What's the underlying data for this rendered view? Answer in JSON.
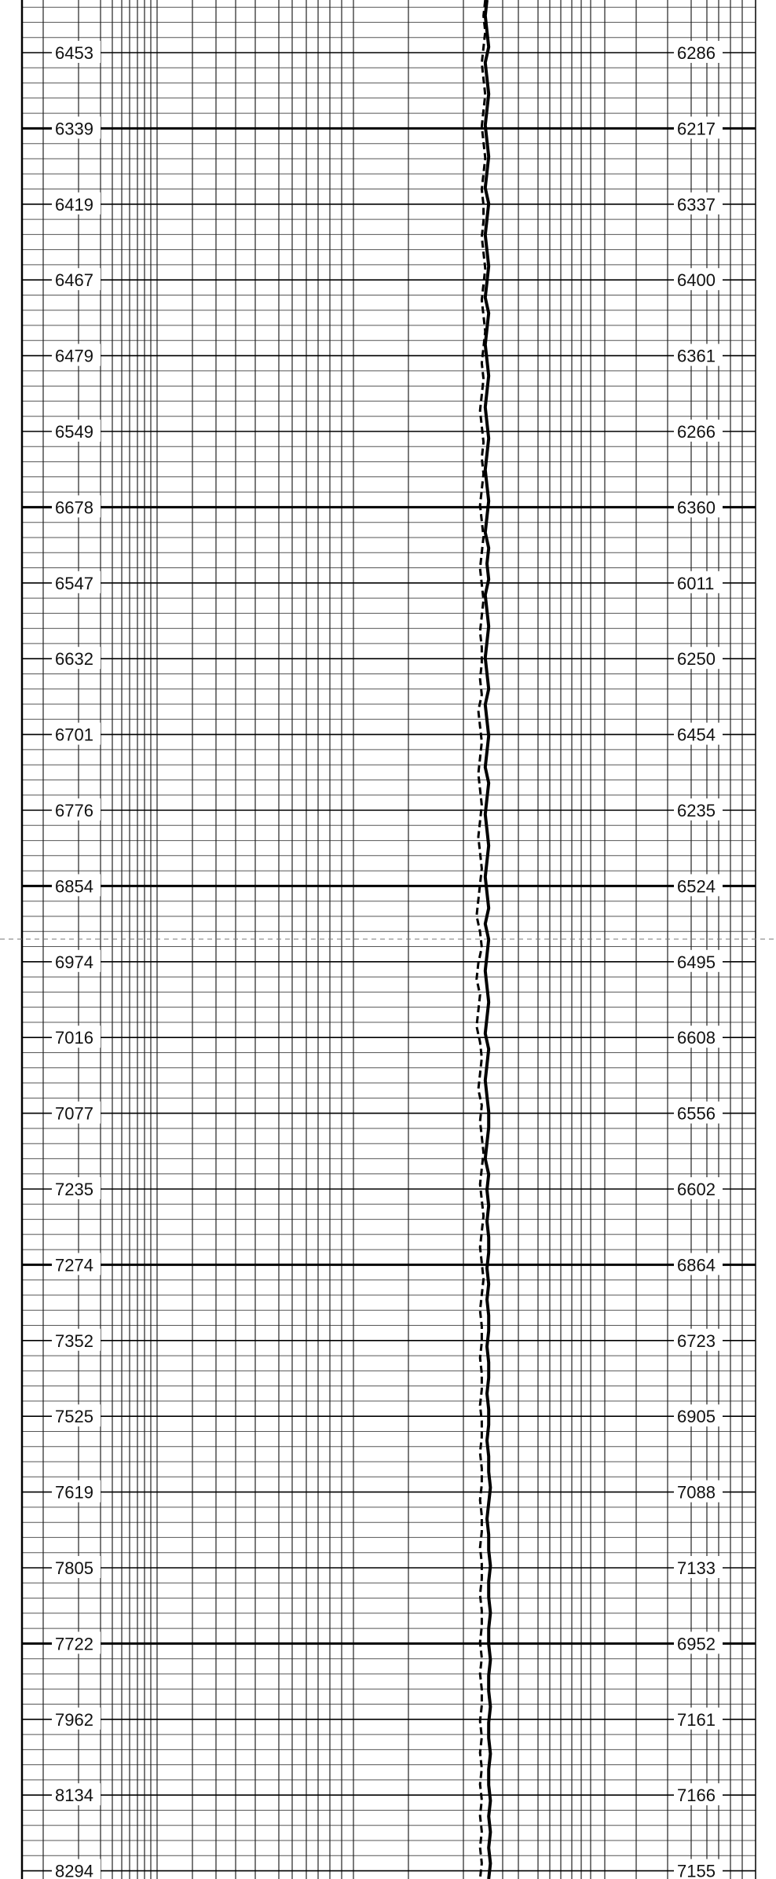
{
  "chart_data": {
    "type": "line",
    "title": "",
    "xlabel": "",
    "ylabel": "",
    "grid": true,
    "label_count": 24,
    "left_track_labels": [
      "6453",
      "6339",
      "6419",
      "6467",
      "6479",
      "6549",
      "6678",
      "6547",
      "6632",
      "6701",
      "6776",
      "6854",
      "6974",
      "7016",
      "7077",
      "7235",
      "7274",
      "7352",
      "7525",
      "7619",
      "7805",
      "7722",
      "7962",
      "8134",
      "8294"
    ],
    "right_track_labels": [
      "6286",
      "6217",
      "6337",
      "6400",
      "6361",
      "6266",
      "6360",
      "6011",
      "6250",
      "6454",
      "6235",
      "6524",
      "6495",
      "6608",
      "6556",
      "6602",
      "6864",
      "6723",
      "6905",
      "7088",
      "7133",
      "6952",
      "7161",
      "7166",
      "7155"
    ],
    "series": [
      {
        "style": "solid",
        "values": [
          0,
          -1,
          0,
          1,
          -1,
          0,
          1,
          0,
          -1,
          0,
          1,
          0,
          -1,
          1,
          0,
          -1,
          0,
          1,
          0,
          -1,
          1,
          0,
          -1,
          0,
          1,
          0,
          -1,
          0,
          1,
          0,
          -1,
          0,
          1,
          0,
          -1,
          1,
          0,
          1,
          -1,
          0,
          1,
          0,
          -1,
          0,
          1,
          -1,
          0,
          1,
          0,
          -1,
          1,
          0,
          -1,
          0,
          1,
          0,
          -1,
          0,
          1,
          -1,
          1,
          0,
          -1,
          0,
          1,
          0,
          -1,
          1,
          0,
          -1,
          0,
          1,
          1,
          0,
          -1,
          1,
          0,
          1,
          0,
          1,
          1,
          0,
          1,
          0,
          1,
          1,
          0,
          1,
          1,
          0,
          1,
          1,
          0,
          1,
          1,
          2,
          1,
          0,
          1,
          1,
          2,
          1,
          1,
          2,
          1,
          1,
          2,
          1,
          1,
          2,
          1,
          1,
          2,
          1,
          1,
          2,
          1,
          2,
          1,
          2,
          1
        ]
      },
      {
        "style": "dashed",
        "values": [
          -1,
          -2,
          -1,
          -2,
          -3,
          -2,
          -1,
          -2,
          -3,
          -2,
          -1,
          -2,
          -3,
          -2,
          -2,
          -3,
          -2,
          -1,
          -2,
          -3,
          -2,
          -1,
          -2,
          -3,
          -2,
          -3,
          -4,
          -3,
          -2,
          -3,
          -2,
          -3,
          -4,
          -3,
          -2,
          -3,
          -4,
          -3,
          -2,
          -3,
          -4,
          -3,
          -3,
          -4,
          -3,
          -5,
          -4,
          -3,
          -4,
          -5,
          -4,
          -3,
          -4,
          -5,
          -4,
          -3,
          -4,
          -5,
          -6,
          -4,
          -3,
          -5,
          -6,
          -4,
          -5,
          -6,
          -4,
          -3,
          -4,
          -5,
          -3,
          -4,
          -3,
          -2,
          -3,
          -4,
          -3,
          -2,
          -3,
          -4,
          -3,
          -2,
          -3,
          -4,
          -3,
          -3,
          -4,
          -3,
          -3,
          -4,
          -3,
          -3,
          -4,
          -3,
          -3,
          -4,
          -3,
          -3,
          -4,
          -3,
          -3,
          -4,
          -3,
          -3,
          -4,
          -3,
          -4,
          -3,
          -3,
          -4,
          -3,
          -4,
          -3,
          -4,
          -3,
          -4,
          -3,
          -4,
          -3,
          -4
        ]
      }
    ]
  }
}
